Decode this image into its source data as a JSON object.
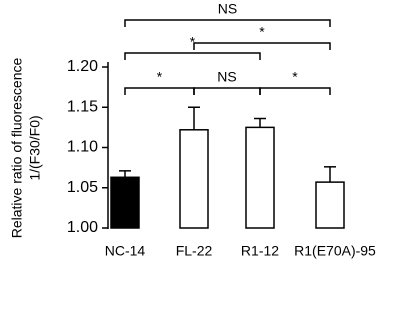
{
  "chart_data": {
    "type": "bar",
    "y_label": [
      "Relative ratio of fluorescence",
      "1/(F30/F0)"
    ],
    "categories": [
      "NC-14",
      "FL-22",
      "R1-12",
      "R1(E70A)-95"
    ],
    "values": [
      1.063,
      1.122,
      1.125,
      1.057
    ],
    "errors": [
      0.008,
      0.028,
      0.011,
      0.019
    ],
    "colors": [
      "#000000",
      "#ffffff",
      "#ffffff",
      "#ffffff"
    ],
    "ylim": [
      1.0,
      1.2
    ],
    "yticks": [
      {
        "value": 1.0,
        "label": "1.00"
      },
      {
        "value": 1.05,
        "label": "1.05"
      },
      {
        "value": 1.1,
        "label": "1.10"
      },
      {
        "value": 1.15,
        "label": "1.15"
      },
      {
        "value": 1.2,
        "label": "1.20"
      }
    ],
    "comparisons": [
      {
        "pair": [
          0,
          3
        ],
        "label": "NS"
      },
      {
        "pair": [
          1,
          3
        ],
        "label": "*"
      },
      {
        "pair": [
          0,
          2
        ],
        "label": "*"
      },
      {
        "pair": [
          0,
          1
        ],
        "label": "*"
      },
      {
        "pair": [
          1,
          2
        ],
        "label": "NS"
      },
      {
        "pair": [
          2,
          3
        ],
        "label": "*"
      }
    ]
  }
}
